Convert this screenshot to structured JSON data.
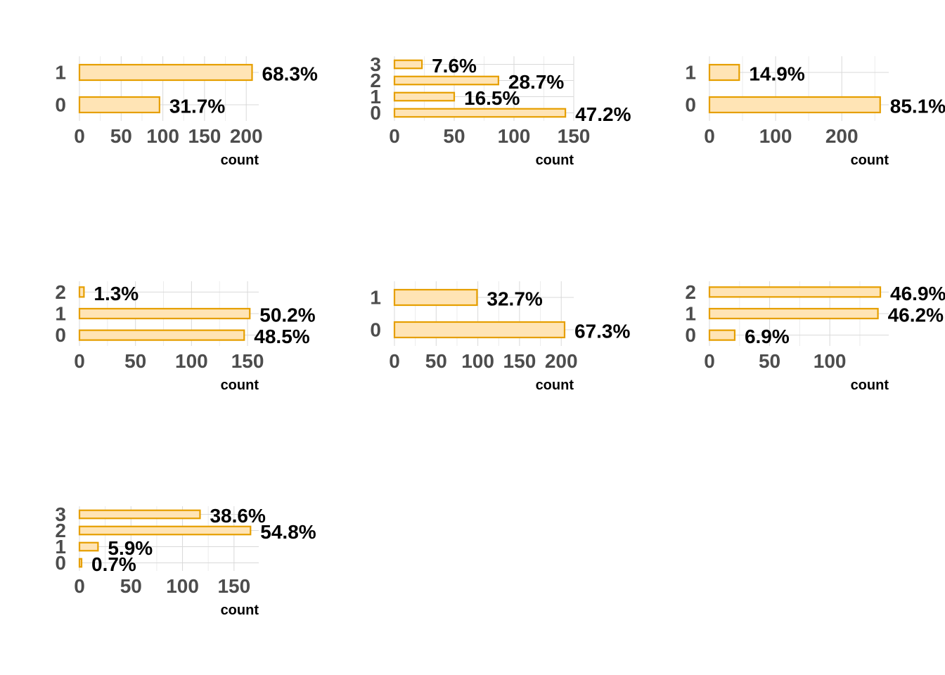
{
  "colors": {
    "bar_fill": "#ffe4b5",
    "bar_outline": "#e69f00",
    "grid": "#d9d9d9",
    "tick_text": "#4d4d4d",
    "label_text": "#000000"
  },
  "chart_data": [
    {
      "type": "bar",
      "orientation": "horizontal",
      "xlabel": "count",
      "ylabel": "",
      "categories": [
        "0",
        "1"
      ],
      "values": [
        96,
        207
      ],
      "labels": [
        "31.7%",
        "68.3%"
      ],
      "xlim": [
        0,
        215
      ],
      "xticks": [
        0,
        50,
        100,
        150,
        200
      ],
      "grid": true
    },
    {
      "type": "bar",
      "orientation": "horizontal",
      "xlabel": "count",
      "ylabel": "",
      "categories": [
        "0",
        "1",
        "2",
        "3"
      ],
      "values": [
        143,
        50,
        87,
        23
      ],
      "labels": [
        "47.2%",
        "16.5%",
        "28.7%",
        "7.6%"
      ],
      "xlim": [
        0,
        150
      ],
      "xticks": [
        0,
        50,
        100,
        150
      ],
      "grid": true
    },
    {
      "type": "bar",
      "orientation": "horizontal",
      "xlabel": "count",
      "ylabel": "",
      "categories": [
        "0",
        "1"
      ],
      "values": [
        258,
        45
      ],
      "labels": [
        "85.1%",
        "14.9%"
      ],
      "xlim": [
        0,
        271
      ],
      "xticks": [
        0,
        100,
        200
      ],
      "grid": true
    },
    {
      "type": "bar",
      "orientation": "horizontal",
      "xlabel": "count",
      "ylabel": "",
      "categories": [
        "0",
        "1",
        "2"
      ],
      "values": [
        147,
        152,
        4
      ],
      "labels": [
        "48.5%",
        "50.2%",
        "1.3%"
      ],
      "xlim": [
        0,
        160
      ],
      "xticks": [
        0,
        50,
        100,
        150
      ],
      "grid": true
    },
    {
      "type": "bar",
      "orientation": "horizontal",
      "xlabel": "count",
      "ylabel": "",
      "categories": [
        "0",
        "1"
      ],
      "values": [
        204,
        99
      ],
      "labels": [
        "67.3%",
        "32.7%"
      ],
      "xlim": [
        0,
        215
      ],
      "xticks": [
        0,
        50,
        100,
        150,
        200
      ],
      "grid": true
    },
    {
      "type": "bar",
      "orientation": "horizontal",
      "xlabel": "count",
      "ylabel": "",
      "categories": [
        "0",
        "1",
        "2"
      ],
      "values": [
        21,
        140,
        142
      ],
      "labels": [
        "6.9%",
        "46.2%",
        "46.9%"
      ],
      "xlim": [
        0,
        149
      ],
      "xticks": [
        0,
        50,
        100
      ],
      "grid": true
    },
    {
      "type": "bar",
      "orientation": "horizontal",
      "xlabel": "count",
      "ylabel": "",
      "categories": [
        "0",
        "1",
        "2",
        "3"
      ],
      "values": [
        2,
        18,
        166,
        117
      ],
      "labels": [
        "0.7%",
        "5.9%",
        "54.8%",
        "38.6%"
      ],
      "xlim": [
        0,
        174
      ],
      "xticks": [
        0,
        50,
        100,
        150
      ],
      "grid": true
    }
  ]
}
